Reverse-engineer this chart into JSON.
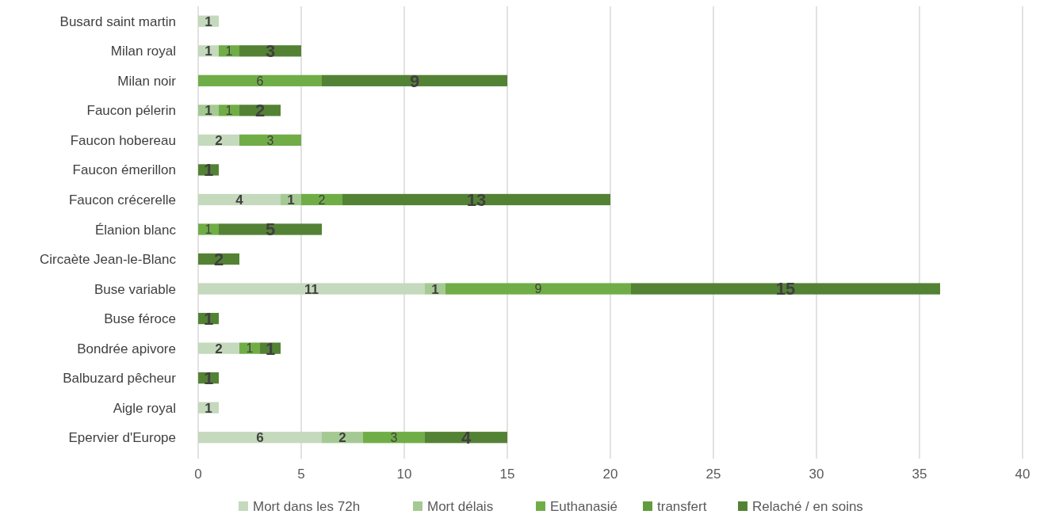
{
  "chart_data": {
    "type": "bar",
    "orientation": "horizontal",
    "stacked": true,
    "data_labels": true,
    "grid": "x",
    "legend": "bottom",
    "categories": [
      "Busard saint martin",
      "Milan royal",
      "Milan noir",
      "Faucon pélerin",
      "Faucon hobereau",
      "Faucon émerillon",
      "Faucon crécerelle",
      "Élanion blanc",
      "Circaète Jean-le-Blanc",
      "Buse variable",
      "Buse féroce",
      "Bondrée apivore",
      "Balbuzard pêcheur",
      "Aigle royal",
      "Epervier d'Europe"
    ],
    "xlim": [
      0,
      40
    ],
    "xticks": [
      0,
      5,
      10,
      15,
      20,
      25,
      30,
      35,
      40
    ],
    "series": [
      {
        "name": "Mort dans les 72h",
        "color": "#c5d9bd",
        "values": [
          1,
          1,
          null,
          null,
          2,
          null,
          4,
          null,
          null,
          11,
          null,
          2,
          null,
          1,
          6
        ]
      },
      {
        "name": "Mort délais",
        "color": "#a5c993",
        "values": [
          null,
          null,
          null,
          1,
          null,
          null,
          1,
          null,
          null,
          1,
          null,
          null,
          null,
          null,
          2
        ]
      },
      {
        "name": "Euthanasié",
        "color": "#70ad47",
        "values": [
          null,
          1,
          6,
          1,
          3,
          null,
          2,
          1,
          null,
          9,
          null,
          1,
          null,
          null,
          3
        ]
      },
      {
        "name": "transfert",
        "color": "#629c3d",
        "values": [
          null,
          null,
          null,
          null,
          null,
          null,
          null,
          null,
          null,
          null,
          null,
          null,
          null,
          null,
          null
        ]
      },
      {
        "name": "Relaché / en soins",
        "color": "#548235",
        "values": [
          null,
          3,
          9,
          2,
          null,
          1,
          13,
          5,
          2,
          15,
          1,
          1,
          1,
          null,
          4
        ]
      }
    ]
  }
}
